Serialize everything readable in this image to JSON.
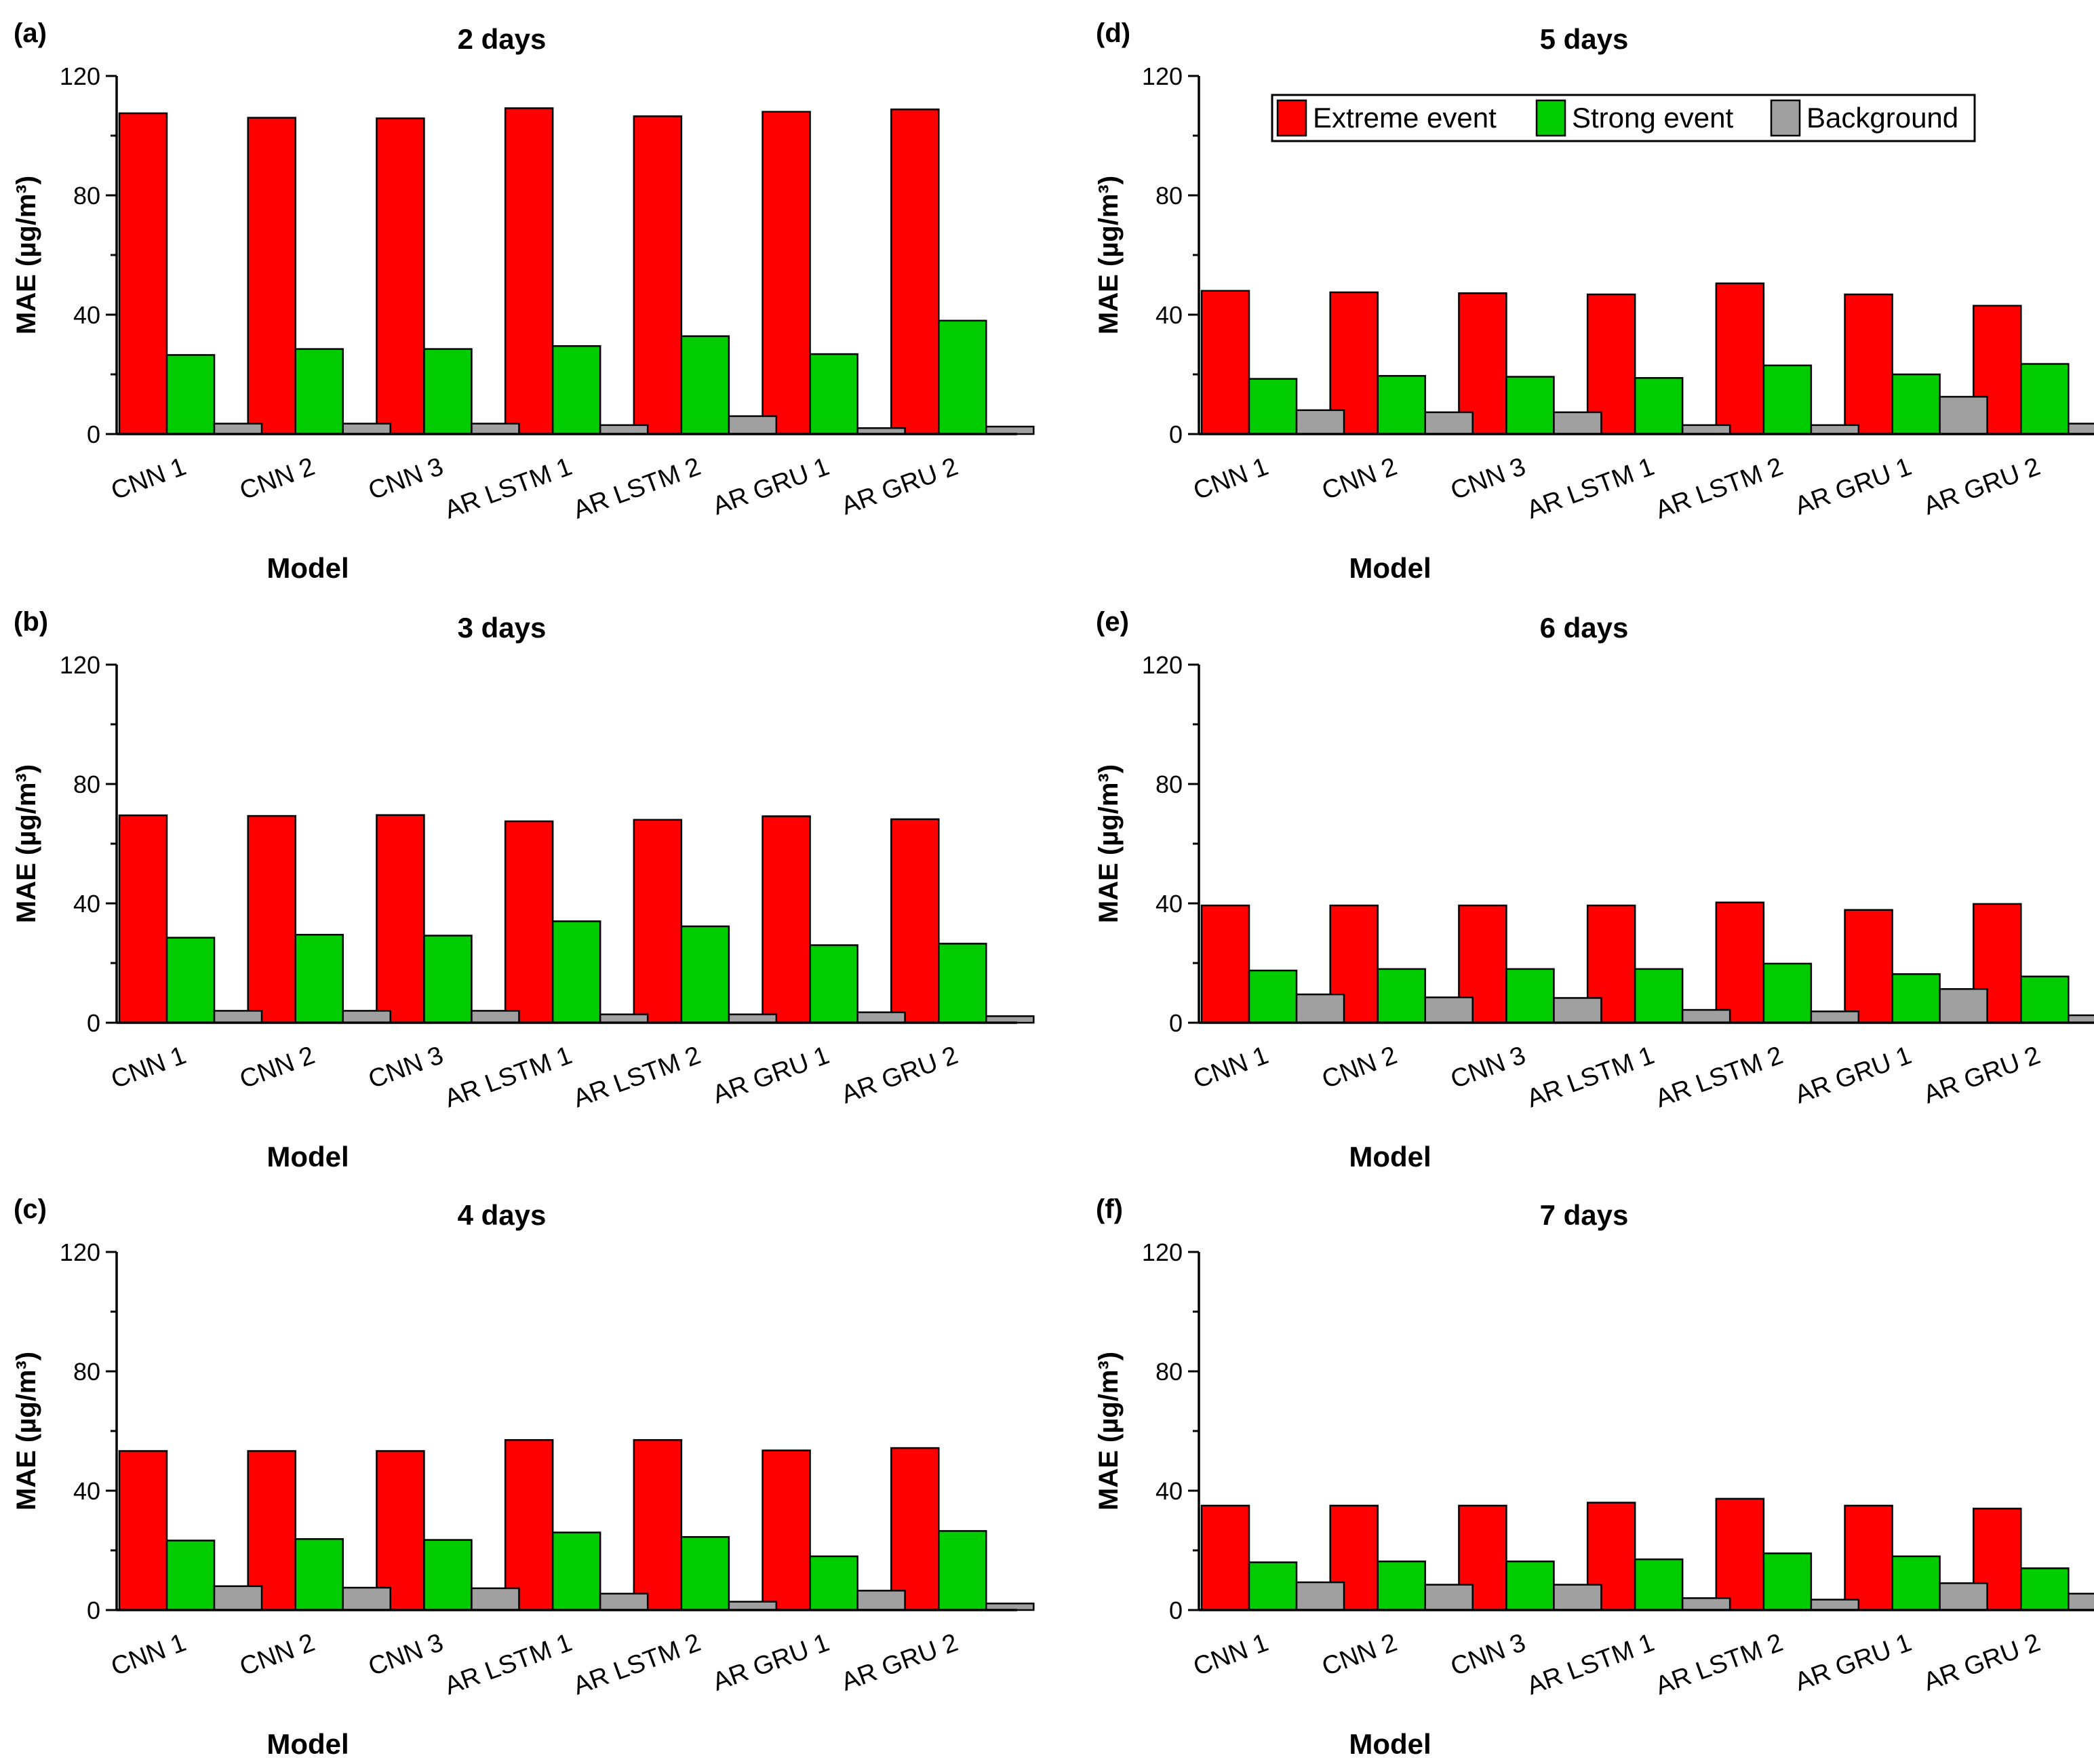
{
  "chart_data": [
    {
      "type": "bar",
      "panel_label": "(a)",
      "title": "2 days",
      "xlabel": "Model",
      "ylabel": "MAE (µg/m³)",
      "ylim": [
        0,
        120
      ],
      "yticks": [
        "0",
        "40",
        "80",
        "120"
      ],
      "categories": [
        "CNN 1",
        "CNN 2",
        "CNN 3",
        "AR LSTM 1",
        "AR LSTM 2",
        "AR GRU 1",
        "AR GRU 2"
      ],
      "series": [
        {
          "name": "Extreme event",
          "color": "#ff0000",
          "values": [
            107.5,
            106,
            105.8,
            109.2,
            106.5,
            108,
            108.8
          ]
        },
        {
          "name": "Strong event",
          "color": "#00cc00",
          "values": [
            26.5,
            28.5,
            28.5,
            29.5,
            32.8,
            26.8,
            38
          ]
        },
        {
          "name": "Background",
          "color": "#a0a0a0",
          "values": [
            3.5,
            3.5,
            3.5,
            3,
            6,
            2,
            2.5
          ]
        }
      ]
    },
    {
      "type": "bar",
      "panel_label": "(b)",
      "title": "3 days",
      "xlabel": "Model",
      "ylabel": "MAE (µg/m³)",
      "ylim": [
        0,
        120
      ],
      "yticks": [
        "0",
        "40",
        "80",
        "120"
      ],
      "categories": [
        "CNN 1",
        "CNN 2",
        "CNN 3",
        "AR LSTM 1",
        "AR LSTM 2",
        "AR GRU 1",
        "AR GRU 2"
      ],
      "series": [
        {
          "name": "Extreme event",
          "color": "#ff0000",
          "values": [
            69.5,
            69.3,
            69.6,
            67.5,
            68,
            69.2,
            68.2
          ]
        },
        {
          "name": "Strong event",
          "color": "#00cc00",
          "values": [
            28.5,
            29.5,
            29.2,
            34,
            32.3,
            26,
            26.5
          ]
        },
        {
          "name": "Background",
          "color": "#a0a0a0",
          "values": [
            4,
            4,
            4,
            2.8,
            2.8,
            3.5,
            2.2
          ]
        }
      ]
    },
    {
      "type": "bar",
      "panel_label": "(c)",
      "title": "4 days",
      "xlabel": "Model",
      "ylabel": "MAE (µg/m³)",
      "ylim": [
        0,
        120
      ],
      "yticks": [
        "0",
        "40",
        "80",
        "120"
      ],
      "categories": [
        "CNN 1",
        "CNN 2",
        "CNN 3",
        "AR LSTM 1",
        "AR LSTM 2",
        "AR GRU 1",
        "AR GRU 2"
      ],
      "series": [
        {
          "name": "Extreme event",
          "color": "#ff0000",
          "values": [
            53.3,
            53.3,
            53.3,
            57,
            57,
            53.5,
            54.3
          ]
        },
        {
          "name": "Strong event",
          "color": "#00cc00",
          "values": [
            23.3,
            23.8,
            23.5,
            26,
            24.5,
            18,
            26.5
          ]
        },
        {
          "name": "Background",
          "color": "#a0a0a0",
          "values": [
            8,
            7.5,
            7.3,
            5.5,
            2.8,
            6.5,
            2.2
          ]
        }
      ]
    },
    {
      "type": "bar",
      "panel_label": "(d)",
      "title": "5 days",
      "xlabel": "Model",
      "ylabel": "MAE (µg/m³)",
      "ylim": [
        0,
        120
      ],
      "yticks": [
        "0",
        "40",
        "80",
        "120"
      ],
      "legend": "top-right",
      "categories": [
        "CNN 1",
        "CNN 2",
        "CNN 3",
        "AR LSTM 1",
        "AR LSTM 2",
        "AR GRU 1",
        "AR GRU 2"
      ],
      "series": [
        {
          "name": "Extreme event",
          "color": "#ff0000",
          "values": [
            48,
            47.5,
            47.2,
            46.8,
            50.5,
            46.8,
            43
          ]
        },
        {
          "name": "Strong event",
          "color": "#00cc00",
          "values": [
            18.5,
            19.5,
            19.2,
            18.8,
            23,
            20,
            23.5
          ]
        },
        {
          "name": "Background",
          "color": "#a0a0a0",
          "values": [
            8,
            7.3,
            7.3,
            3,
            3,
            12.5,
            3.5
          ]
        }
      ]
    },
    {
      "type": "bar",
      "panel_label": "(e)",
      "title": "6 days",
      "xlabel": "Model",
      "ylabel": "MAE (µg/m³)",
      "ylim": [
        0,
        120
      ],
      "yticks": [
        "0",
        "40",
        "80",
        "120"
      ],
      "categories": [
        "CNN 1",
        "CNN 2",
        "CNN 3",
        "AR LSTM 1",
        "AR LSTM 2",
        "AR GRU 1",
        "AR GRU 2"
      ],
      "series": [
        {
          "name": "Extreme event",
          "color": "#ff0000",
          "values": [
            39.3,
            39.3,
            39.3,
            39.3,
            40.3,
            37.8,
            39.8
          ]
        },
        {
          "name": "Strong event",
          "color": "#00cc00",
          "values": [
            17.5,
            18,
            18,
            18,
            19.8,
            16.3,
            15.5
          ]
        },
        {
          "name": "Background",
          "color": "#a0a0a0",
          "values": [
            9.5,
            8.5,
            8.3,
            4.3,
            3.8,
            11.3,
            2.5
          ]
        }
      ]
    },
    {
      "type": "bar",
      "panel_label": "(f)",
      "title": "7 days",
      "xlabel": "Model",
      "ylabel": "MAE (µg/m³)",
      "ylim": [
        0,
        120
      ],
      "yticks": [
        "0",
        "40",
        "80",
        "120"
      ],
      "categories": [
        "CNN 1",
        "CNN 2",
        "CNN 3",
        "AR LSTM 1",
        "AR LSTM 2",
        "AR GRU 1",
        "AR GRU 2"
      ],
      "series": [
        {
          "name": "Extreme event",
          "color": "#ff0000",
          "values": [
            35,
            35,
            35,
            36,
            37.3,
            35,
            34
          ]
        },
        {
          "name": "Strong event",
          "color": "#00cc00",
          "values": [
            16,
            16.3,
            16.3,
            17,
            19,
            18,
            14
          ]
        },
        {
          "name": "Background",
          "color": "#a0a0a0",
          "values": [
            9.3,
            8.5,
            8.5,
            4,
            3.5,
            9,
            5.5
          ]
        }
      ]
    }
  ]
}
